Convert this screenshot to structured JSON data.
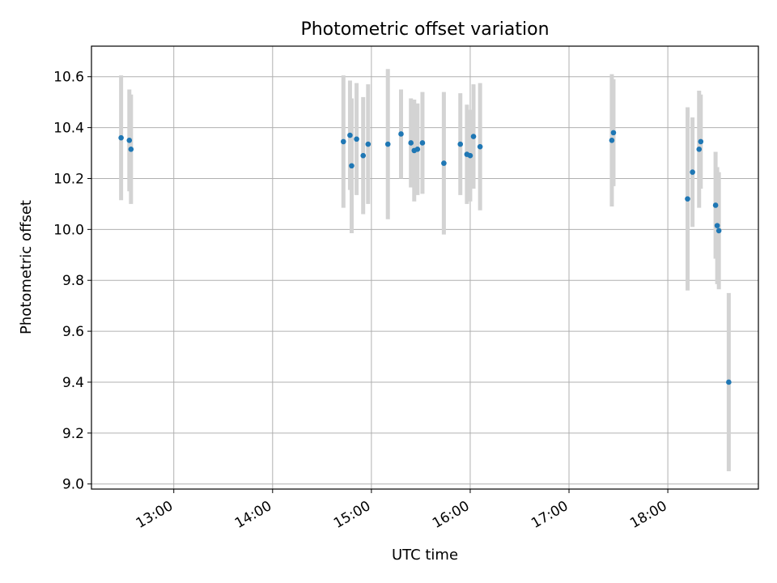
{
  "chart_data": {
    "type": "scatter",
    "title": "Photometric offset variation",
    "xlabel": "UTC time",
    "ylabel": "Photometric offset",
    "x_axis": {
      "kind": "time",
      "range": [
        "12:10",
        "18:55"
      ],
      "ticks": [
        "13:00",
        "14:00",
        "15:00",
        "16:00",
        "17:00",
        "18:00"
      ]
    },
    "y_axis": {
      "range": [
        8.98,
        10.72
      ],
      "ticks": [
        "9.0",
        "9.2",
        "9.4",
        "9.6",
        "9.8",
        "10.0",
        "10.2",
        "10.4",
        "10.6"
      ]
    },
    "grid": true,
    "colors": {
      "point": "#1f77b4",
      "errorbar": "#d3d3d3",
      "grid": "#b0b0b0"
    },
    "points": [
      {
        "x": "12:28",
        "y": 10.36,
        "err": 0.245
      },
      {
        "x": "12:33",
        "y": 10.35,
        "err": 0.2
      },
      {
        "x": "12:34",
        "y": 10.315,
        "err": 0.215
      },
      {
        "x": "14:43",
        "y": 10.345,
        "err": 0.26
      },
      {
        "x": "14:47",
        "y": 10.37,
        "err": 0.215
      },
      {
        "x": "14:48",
        "y": 10.25,
        "err": 0.265
      },
      {
        "x": "14:51",
        "y": 10.355,
        "err": 0.22
      },
      {
        "x": "14:55",
        "y": 10.29,
        "err": 0.23
      },
      {
        "x": "14:58",
        "y": 10.335,
        "err": 0.235
      },
      {
        "x": "15:10",
        "y": 10.335,
        "err": 0.295
      },
      {
        "x": "15:18",
        "y": 10.375,
        "err": 0.175
      },
      {
        "x": "15:24",
        "y": 10.34,
        "err": 0.175
      },
      {
        "x": "15:26",
        "y": 10.31,
        "err": 0.2
      },
      {
        "x": "15:28",
        "y": 10.315,
        "err": 0.18
      },
      {
        "x": "15:31",
        "y": 10.34,
        "err": 0.2
      },
      {
        "x": "15:44",
        "y": 10.26,
        "err": 0.28
      },
      {
        "x": "15:54",
        "y": 10.335,
        "err": 0.2
      },
      {
        "x": "15:58",
        "y": 10.295,
        "err": 0.195
      },
      {
        "x": "16:00",
        "y": 10.29,
        "err": 0.18
      },
      {
        "x": "16:02",
        "y": 10.365,
        "err": 0.205
      },
      {
        "x": "16:06",
        "y": 10.325,
        "err": 0.25
      },
      {
        "x": "17:26",
        "y": 10.35,
        "err": 0.26
      },
      {
        "x": "17:27",
        "y": 10.38,
        "err": 0.21
      },
      {
        "x": "18:12",
        "y": 10.12,
        "err": 0.36
      },
      {
        "x": "18:15",
        "y": 10.225,
        "err": 0.215
      },
      {
        "x": "18:19",
        "y": 10.315,
        "err": 0.23
      },
      {
        "x": "18:20",
        "y": 10.345,
        "err": 0.185
      },
      {
        "x": "18:29",
        "y": 10.095,
        "err": 0.21
      },
      {
        "x": "18:30",
        "y": 10.015,
        "err": 0.23
      },
      {
        "x": "18:31",
        "y": 9.995,
        "err": 0.23
      },
      {
        "x": "18:37",
        "y": 9.4,
        "err": 0.35
      }
    ]
  }
}
